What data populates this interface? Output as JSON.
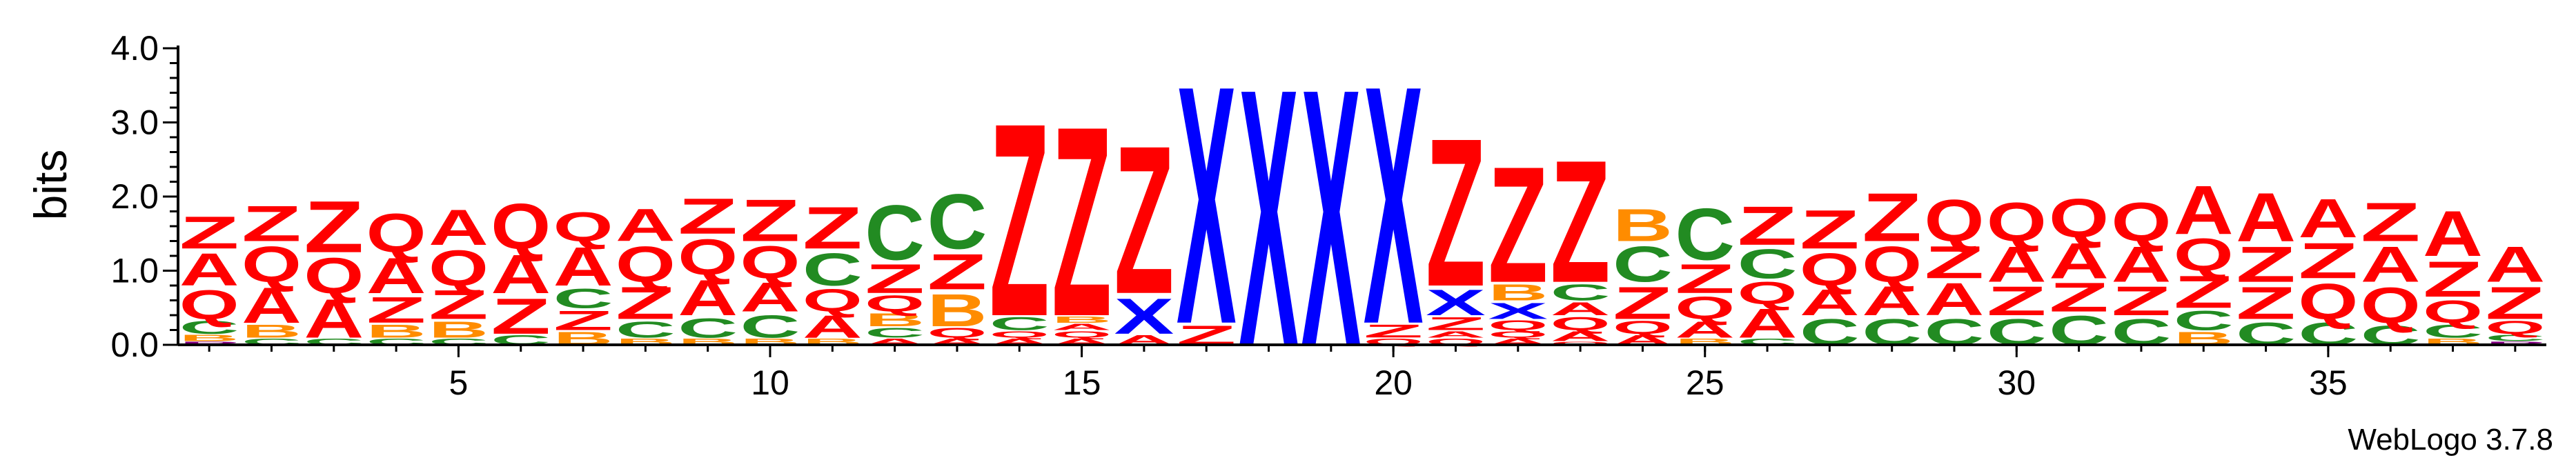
{
  "chart_data": {
    "type": "sequence-logo",
    "title": "",
    "xlabel": "",
    "ylabel": "bits",
    "ylim": [
      0,
      4
    ],
    "y_ticks": [
      "0.0",
      "1.0",
      "2.0",
      "3.0",
      "4.0"
    ],
    "x_ticks": [
      5,
      10,
      15,
      20,
      25,
      30,
      35
    ],
    "positions": [
      1,
      38
    ],
    "colors": {
      "Z": "#ff0000",
      "Q": "#ff0000",
      "A": "#ff0000",
      "C": "#228b22",
      "B": "#ff8c00",
      "X": "#0000ff",
      "P": "#800080"
    },
    "columns": [
      {
        "pos": 1,
        "stack": [
          [
            "P",
            0.05
          ],
          [
            "B",
            0.1
          ],
          [
            "C",
            0.2
          ],
          [
            "Q",
            0.45
          ],
          [
            "A",
            0.5
          ],
          [
            "Z",
            0.5
          ]
        ]
      },
      {
        "pos": 2,
        "stack": [
          [
            "C",
            0.1
          ],
          [
            "B",
            0.2
          ],
          [
            "A",
            0.55
          ],
          [
            "Q",
            0.55
          ],
          [
            "Z",
            0.55
          ]
        ]
      },
      {
        "pos": 3,
        "stack": [
          [
            "C",
            0.1
          ],
          [
            "A",
            0.6
          ],
          [
            "Q",
            0.55
          ],
          [
            "Z",
            0.8
          ]
        ]
      },
      {
        "pos": 4,
        "stack": [
          [
            "C",
            0.1
          ],
          [
            "B",
            0.2
          ],
          [
            "Z",
            0.4
          ],
          [
            "A",
            0.55
          ],
          [
            "Q",
            0.6
          ]
        ]
      },
      {
        "pos": 5,
        "stack": [
          [
            "C",
            0.1
          ],
          [
            "B",
            0.25
          ],
          [
            "Z",
            0.45
          ],
          [
            "Q",
            0.55
          ],
          [
            "A",
            0.55
          ]
        ]
      },
      {
        "pos": 6,
        "stack": [
          [
            "C",
            0.15
          ],
          [
            "Z",
            0.55
          ],
          [
            "A",
            0.6
          ],
          [
            "Q",
            0.7
          ]
        ]
      },
      {
        "pos": 7,
        "stack": [
          [
            "B",
            0.2
          ],
          [
            "Z",
            0.3
          ],
          [
            "C",
            0.3
          ],
          [
            "A",
            0.6
          ],
          [
            "Q",
            0.45
          ]
        ]
      },
      {
        "pos": 8,
        "stack": [
          [
            "B",
            0.1
          ],
          [
            "C",
            0.25
          ],
          [
            "Z",
            0.5
          ],
          [
            "Q",
            0.55
          ],
          [
            "A",
            0.5
          ]
        ]
      },
      {
        "pos": 9,
        "stack": [
          [
            "B",
            0.1
          ],
          [
            "C",
            0.3
          ],
          [
            "A",
            0.55
          ],
          [
            "Q",
            0.55
          ],
          [
            "Z",
            0.55
          ]
        ]
      },
      {
        "pos": 10,
        "stack": [
          [
            "B",
            0.1
          ],
          [
            "C",
            0.35
          ],
          [
            "A",
            0.45
          ],
          [
            "Q",
            0.5
          ],
          [
            "Z",
            0.65
          ]
        ]
      },
      {
        "pos": 11,
        "stack": [
          [
            "B",
            0.1
          ],
          [
            "A",
            0.35
          ],
          [
            "Q",
            0.35
          ],
          [
            "C",
            0.5
          ],
          [
            "Z",
            0.65
          ]
        ]
      },
      {
        "pos": 12,
        "stack": [
          [
            "A",
            0.1
          ],
          [
            "C",
            0.15
          ],
          [
            "B",
            0.2
          ],
          [
            "Q",
            0.25
          ],
          [
            "Z",
            0.45
          ],
          [
            "C",
            0.85
          ]
        ]
      },
      {
        "pos": 13,
        "stack": [
          [
            "A",
            0.1
          ],
          [
            "Q",
            0.15
          ],
          [
            "B",
            0.5
          ],
          [
            "Z",
            0.55
          ],
          [
            "C",
            0.85
          ]
        ]
      },
      {
        "pos": 14,
        "stack": [
          [
            "A",
            0.1
          ],
          [
            "Q",
            0.1
          ],
          [
            "C",
            0.2
          ],
          [
            "Z",
            3.0
          ]
        ]
      },
      {
        "pos": 15,
        "stack": [
          [
            "A",
            0.1
          ],
          [
            "Q",
            0.1
          ],
          [
            "A",
            0.1
          ],
          [
            "B",
            0.1
          ],
          [
            "Z",
            2.95
          ]
        ]
      },
      {
        "pos": 16,
        "stack": [
          [
            "A",
            0.15
          ],
          [
            "X",
            0.55
          ],
          [
            "Z",
            2.3
          ]
        ]
      },
      {
        "pos": 17,
        "stack": [
          [
            "Z",
            0.3
          ],
          [
            "X",
            3.7
          ]
        ]
      },
      {
        "pos": 18,
        "stack": [
          [
            "X",
            4.0
          ]
        ]
      },
      {
        "pos": 19,
        "stack": [
          [
            "X",
            4.0
          ]
        ]
      },
      {
        "pos": 20,
        "stack": [
          [
            "Q",
            0.1
          ],
          [
            "Z",
            0.2
          ],
          [
            "X",
            3.7
          ]
        ]
      },
      {
        "pos": 21,
        "stack": [
          [
            "Q",
            0.1
          ],
          [
            "A",
            0.1
          ],
          [
            "Z",
            0.2
          ],
          [
            "X",
            0.4
          ],
          [
            "Z",
            2.3
          ]
        ]
      },
      {
        "pos": 22,
        "stack": [
          [
            "A",
            0.1
          ],
          [
            "Q",
            0.1
          ],
          [
            "Q",
            0.15
          ],
          [
            "X",
            0.25
          ],
          [
            "B",
            0.25
          ],
          [
            "Z",
            1.8
          ]
        ]
      },
      {
        "pos": 23,
        "stack": [
          [
            "Q",
            0.05
          ],
          [
            "A",
            0.15
          ],
          [
            "Q",
            0.2
          ],
          [
            "A",
            0.2
          ],
          [
            "C",
            0.25
          ],
          [
            "Z",
            1.9
          ]
        ]
      },
      {
        "pos": 24,
        "stack": [
          [
            "A",
            0.15
          ],
          [
            "Q",
            0.2
          ],
          [
            "Z",
            0.5
          ],
          [
            "C",
            0.55
          ],
          [
            "B",
            0.5
          ]
        ]
      },
      {
        "pos": 25,
        "stack": [
          [
            "B",
            0.1
          ],
          [
            "A",
            0.25
          ],
          [
            "Q",
            0.35
          ],
          [
            "Z",
            0.45
          ],
          [
            "C",
            0.8
          ]
        ]
      },
      {
        "pos": 26,
        "stack": [
          [
            "C",
            0.1
          ],
          [
            "A",
            0.45
          ],
          [
            "Q",
            0.35
          ],
          [
            "C",
            0.45
          ],
          [
            "Z",
            0.6
          ]
        ]
      },
      {
        "pos": 27,
        "stack": [
          [
            "C",
            0.4
          ],
          [
            "A",
            0.4
          ],
          [
            "Q",
            0.5
          ],
          [
            "Z",
            0.6
          ]
        ]
      },
      {
        "pos": 28,
        "stack": [
          [
            "C",
            0.4
          ],
          [
            "A",
            0.45
          ],
          [
            "Q",
            0.55
          ],
          [
            "Z",
            0.75
          ]
        ]
      },
      {
        "pos": 29,
        "stack": [
          [
            "C",
            0.4
          ],
          [
            "A",
            0.5
          ],
          [
            "Z",
            0.5
          ],
          [
            "Q",
            0.65
          ]
        ]
      },
      {
        "pos": 30,
        "stack": [
          [
            "C",
            0.4
          ],
          [
            "Z",
            0.45
          ],
          [
            "A",
            0.55
          ],
          [
            "Q",
            0.6
          ]
        ]
      },
      {
        "pos": 31,
        "stack": [
          [
            "C",
            0.45
          ],
          [
            "Z",
            0.45
          ],
          [
            "A",
            0.55
          ],
          [
            "Q",
            0.6
          ]
        ]
      },
      {
        "pos": 32,
        "stack": [
          [
            "C",
            0.4
          ],
          [
            "Z",
            0.45
          ],
          [
            "A",
            0.55
          ],
          [
            "Q",
            0.6
          ]
        ]
      },
      {
        "pos": 33,
        "stack": [
          [
            "B",
            0.2
          ],
          [
            "C",
            0.3
          ],
          [
            "Z",
            0.5
          ],
          [
            "Q",
            0.5
          ],
          [
            "A",
            0.75
          ]
        ]
      },
      {
        "pos": 34,
        "stack": [
          [
            "C",
            0.35
          ],
          [
            "Z",
            0.5
          ],
          [
            "Z",
            0.55
          ],
          [
            "A",
            0.75
          ]
        ]
      },
      {
        "pos": 35,
        "stack": [
          [
            "C",
            0.35
          ],
          [
            "Q",
            0.55
          ],
          [
            "Z",
            0.55
          ],
          [
            "A",
            0.6
          ]
        ]
      },
      {
        "pos": 36,
        "stack": [
          [
            "C",
            0.3
          ],
          [
            "Q",
            0.55
          ],
          [
            "A",
            0.55
          ],
          [
            "Z",
            0.6
          ]
        ]
      },
      {
        "pos": 37,
        "stack": [
          [
            "B",
            0.1
          ],
          [
            "C",
            0.2
          ],
          [
            "Q",
            0.35
          ],
          [
            "Z",
            0.55
          ],
          [
            "A",
            0.7
          ]
        ]
      },
      {
        "pos": 38,
        "stack": [
          [
            "P",
            0.05
          ],
          [
            "C",
            0.1
          ],
          [
            "Q",
            0.2
          ],
          [
            "Z",
            0.5
          ],
          [
            "A",
            0.55
          ]
        ]
      }
    ]
  },
  "footer": {
    "credit": "WebLogo 3.7.8"
  }
}
